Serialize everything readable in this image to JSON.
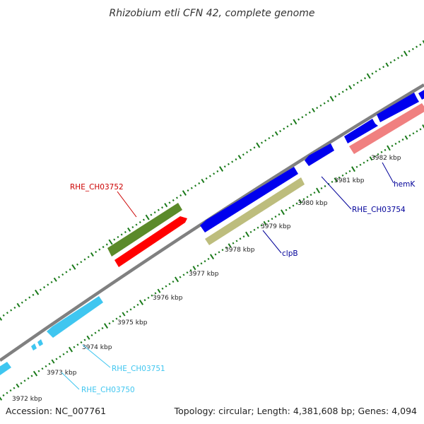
{
  "title": "Rhizobium etli CFN 42, complete genome",
  "footer": {
    "accession": "Accession: NC_007761",
    "summary": "Topology: circular; Length: 4,381,608 bp; Genes: 4,094"
  },
  "backbone_color": "#808080",
  "tick_color": "#1a7a1a",
  "ticks": [
    {
      "kbp": 3972,
      "label": "3972 kbp"
    },
    {
      "kbp": 3973,
      "label": "3973 kbp"
    },
    {
      "kbp": 3974,
      "label": "3974 kbp"
    },
    {
      "kbp": 3975,
      "label": "3975 kbp"
    },
    {
      "kbp": 3976,
      "label": "3976 kbp"
    },
    {
      "kbp": 3977,
      "label": "3977 kbp"
    },
    {
      "kbp": 3978,
      "label": "3978 kbp"
    },
    {
      "kbp": 3979,
      "label": "3979 kbp"
    },
    {
      "kbp": 3980,
      "label": "3980 kbp"
    },
    {
      "kbp": 3981,
      "label": "3981 kbp"
    },
    {
      "kbp": 3982,
      "label": "3982 kbp"
    }
  ],
  "genes": [
    {
      "id": "g-cyan-1",
      "color": "#3fc6f0"
    },
    {
      "id": "g-cyan-2",
      "color": "#3fc6f0"
    },
    {
      "id": "g-cyan-3",
      "color": "#3fc6f0"
    },
    {
      "id": "g-green",
      "color": "#5b8a2a"
    },
    {
      "id": "g-red",
      "color": "#ff0000"
    },
    {
      "id": "g-blue-1",
      "color": "#0000ee"
    },
    {
      "id": "g-khaki",
      "color": "#bdbd7d"
    },
    {
      "id": "g-blue-2",
      "color": "#0000ee"
    },
    {
      "id": "g-blue-3",
      "color": "#0000ee"
    },
    {
      "id": "g-blue-4",
      "color": "#0000ee"
    },
    {
      "id": "g-blue-5",
      "color": "#0000ee"
    },
    {
      "id": "g-pink",
      "color": "#f08080"
    }
  ],
  "gene_labels": [
    {
      "text": "RHE_CH03752",
      "color": "#cc0000"
    },
    {
      "text": "RHE_CH03754",
      "color": "#000099"
    },
    {
      "text": "hemK",
      "color": "#000099"
    },
    {
      "text": "clpB",
      "color": "#000099"
    },
    {
      "text": "RHE_CH03751",
      "color": "#3fc6f0"
    },
    {
      "text": "RHE_CH03750",
      "color": "#3fc6f0"
    }
  ]
}
